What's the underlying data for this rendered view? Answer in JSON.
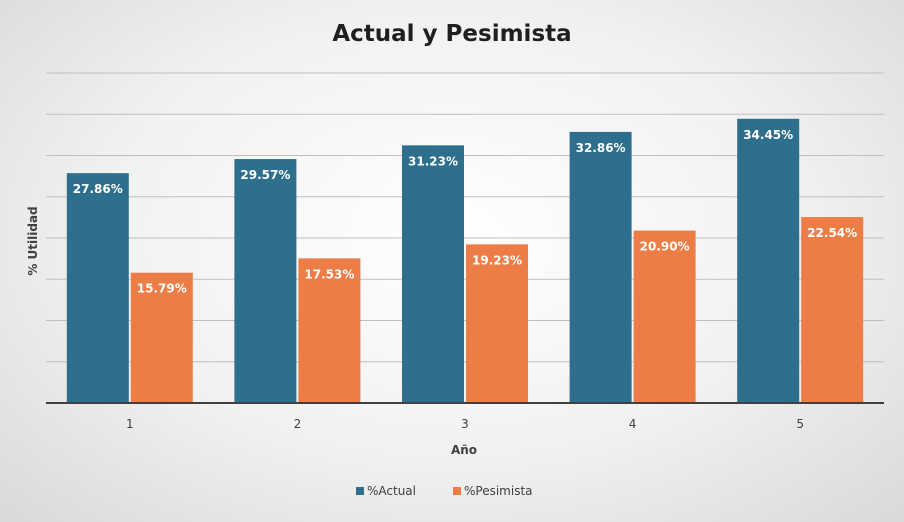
{
  "chart_data": {
    "type": "bar",
    "title": "Actual y Pesimista",
    "xlabel": "Año",
    "ylabel": "% Utilidad",
    "categories": [
      "1",
      "2",
      "3",
      "4",
      "5"
    ],
    "series": [
      {
        "name": "%Actual",
        "color": "#2e6f8e",
        "values": [
          27.86,
          29.57,
          31.23,
          32.86,
          34.45
        ],
        "labels": [
          "27.86%",
          "29.57%",
          "31.23%",
          "32.86%",
          "34.45%"
        ]
      },
      {
        "name": "%Pesimista",
        "color": "#ed7d46",
        "values": [
          15.79,
          17.53,
          19.23,
          20.9,
          22.54
        ],
        "labels": [
          "15.79%",
          "17.53%",
          "19.23%",
          "20.90%",
          "22.54%"
        ]
      }
    ],
    "ylim": [
      0,
      40
    ],
    "grid": true,
    "legend_position": "bottom"
  }
}
